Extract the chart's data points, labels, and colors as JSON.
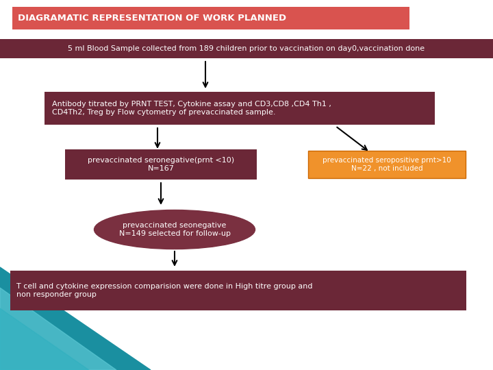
{
  "title": "DIAGRAMATIC REPRESENTATION OF WORK PLANNED",
  "title_bg": "#d9534f",
  "title_text_color": "#ffffff",
  "bg_color": "#ffffff",
  "box1_text": "5 ml Blood Sample collected from 189 children prior to vaccination on day0,vaccination done",
  "box1_color": "#6b2737",
  "box1_text_color": "#ffffff",
  "box2_text": "Antibody titrated by PRNT TEST, Cytokine assay and CD3,CD8 ,CD4 Th1 ,\nCD4Th2, Treg by Flow cytometry of prevaccinated sample.",
  "box2_text_color": "#ffffff",
  "box2_color": "#6b2737",
  "box3_text": "prevaccinated seronegative(prnt <10)\nN=167",
  "box3_color": "#6b2737",
  "box3_text_color": "#ffffff",
  "box4_text": "prevaccinated seropositive prnt>10\nN=22 , not included",
  "box4_color": "#f0922b",
  "box4_text_color": "#ffffff",
  "oval_text": "prevaccinated seonegative\nN=149 selected for follow-up",
  "oval_color": "#7a3040",
  "oval_text_color": "#ffffff",
  "box5_text": "T cell and cytokine expression comparision were done in High titre group and\nnon responder group",
  "box5_color": "#6b2737",
  "box5_text_color": "#ffffff",
  "arrow_color": "#000000",
  "teal_color1": "#1a8fa0",
  "teal_color2": "#5bc8d4",
  "teal_color3": "#2db0c0"
}
